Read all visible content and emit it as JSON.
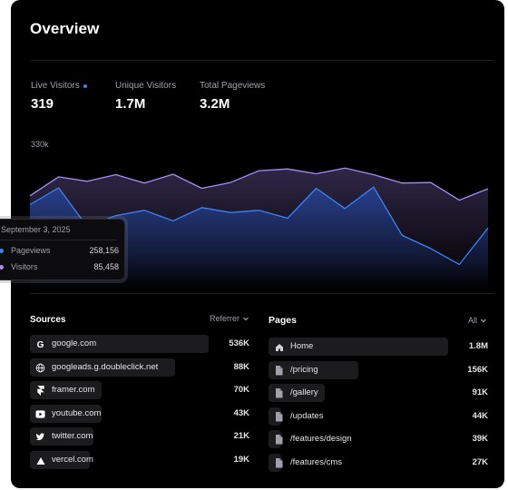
{
  "header": {
    "title": "Overview"
  },
  "stats": [
    {
      "label": "Live Visitors",
      "value": "319"
    },
    {
      "label": "Unique Visitors",
      "value": "1.7M"
    },
    {
      "label": "Total Pageviews",
      "value": "3.2M"
    }
  ],
  "chart_data": {
    "type": "area",
    "title": "",
    "y_tick_labels": [
      "330k"
    ],
    "grid": false,
    "series": [
      {
        "name": "Visitors",
        "color": "#a78bfa",
        "values": [
          215000,
          258000,
          248000,
          263000,
          244000,
          264000,
          232000,
          245000,
          272000,
          276000,
          265000,
          278000,
          263000,
          244000,
          245000,
          205000,
          231000
        ]
      },
      {
        "name": "Pageviews",
        "color": "#3b82f6",
        "values": [
          195000,
          233000,
          145000,
          170000,
          182000,
          158000,
          188000,
          177000,
          182000,
          164000,
          232000,
          186000,
          235000,
          125000,
          95000,
          59000,
          142000
        ]
      }
    ]
  },
  "tooltip": {
    "date": "September 3, 2025",
    "rows": [
      {
        "label": "Pageviews",
        "value": "258,156",
        "color": "#3b82f6"
      },
      {
        "label": "Visitors",
        "value": "85,458",
        "color": "#a78bfa"
      }
    ]
  },
  "sources": {
    "title": "Sources",
    "filter": "Referrer",
    "items": [
      {
        "icon": "google-icon",
        "name": "google.com",
        "count": "536K",
        "share": 0.9
      },
      {
        "icon": "globe-icon",
        "name": "googleads.g.doubleclick.net",
        "count": "88K",
        "share": 0.73
      },
      {
        "icon": "framer-icon",
        "name": "framer.com",
        "count": "70K",
        "share": 0.36
      },
      {
        "icon": "youtube-icon",
        "name": "youtube.com",
        "count": "43K",
        "share": 0.36
      },
      {
        "icon": "twitter-icon",
        "name": "twitter.com",
        "count": "21K",
        "share": 0.32
      },
      {
        "icon": "vercel-icon",
        "name": "vercel.com",
        "count": "19K",
        "share": 0.3
      }
    ]
  },
  "pages": {
    "title": "Pages",
    "filter": "All",
    "items": [
      {
        "icon": "home-icon",
        "name": "Home",
        "count": "1.8M",
        "share": 0.9
      },
      {
        "icon": "file-icon",
        "name": "/pricing",
        "count": "156K",
        "share": 0.45
      },
      {
        "icon": "file-icon",
        "name": "/gallery",
        "count": "91K",
        "share": 0.28
      },
      {
        "icon": "file-icon",
        "name": "/updates",
        "count": "44K",
        "share": 0.02
      },
      {
        "icon": "file-icon",
        "name": "/features/design",
        "count": "39K",
        "share": 0.02
      },
      {
        "icon": "file-icon",
        "name": "/features/cms",
        "count": "27K",
        "share": 0.02
      }
    ]
  }
}
